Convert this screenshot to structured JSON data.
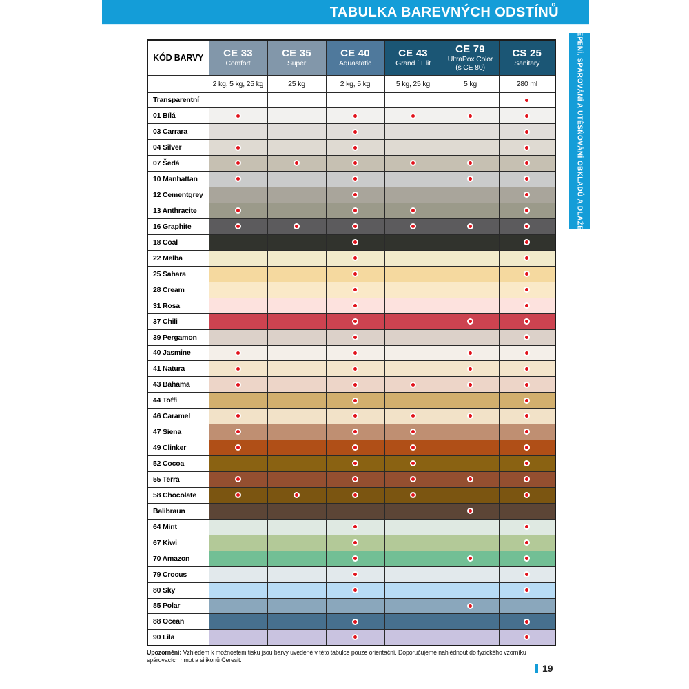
{
  "page": {
    "title": "TABULKA BAREVNÝCH ODSTÍNŮ",
    "side_tab": "LEPENÍ, SPÁROVÁNÍ A UTĚSŇOVÁNÍ OBKLADŮ A DLAŽBY",
    "note_bold": "Upozornění:",
    "note_text": " Vzhledem k možnostem tisku jsou barvy uvedené v této tabulce pouze orientační. Doporučujeme nahlédnout do fyzického vzorníku spárovacích hmot a silikonů Ceresit.",
    "page_number": "19"
  },
  "colors": {
    "accent_cyan": "#149DD8",
    "dot_red": "#E1121B",
    "header_dark_teal": "#1B5675",
    "header_mid_blue": "#4F799C",
    "header_gray_blue": "#8297AA"
  },
  "table": {
    "corner_header": "KÓD BARVY",
    "products": [
      {
        "code": "CE 33",
        "name": "Comfort",
        "sizes": "2 kg, 5 kg, 25 kg",
        "header_bg": "#8297AA"
      },
      {
        "code": "CE 35",
        "name": "Super",
        "sizes": "25 kg",
        "header_bg": "#8297AA"
      },
      {
        "code": "CE 40",
        "name": "Aquastatic",
        "sizes": "2 kg, 5 kg",
        "header_bg": "#4F799C"
      },
      {
        "code": "CE 43",
        "name": "Grand ´ Elit",
        "sizes": "5 kg, 25 kg",
        "header_bg": "#1B5675"
      },
      {
        "code": "CE 79",
        "name": "UltraPox Color",
        "name2": "(s CE 80)",
        "sizes": "5 kg",
        "header_bg": "#1B5675"
      },
      {
        "code": "CS 25",
        "name": "Sanitary",
        "sizes": "280 ml",
        "header_bg": "#1B5675"
      }
    ],
    "rows": [
      {
        "label": "Transparentní",
        "color": "#FFFFFF",
        "dots": [
          0,
          0,
          0,
          0,
          0,
          1
        ]
      },
      {
        "label": "01 Bílá",
        "color": "#F2F1EF",
        "dots": [
          1,
          0,
          1,
          1,
          1,
          1
        ]
      },
      {
        "label": "03 Carrara",
        "color": "#E1DDDA",
        "dots": [
          0,
          0,
          1,
          0,
          0,
          1
        ]
      },
      {
        "label": "04 Silver",
        "color": "#DFDAD2",
        "dots": [
          1,
          0,
          1,
          0,
          0,
          1
        ]
      },
      {
        "label": "07 Šedá",
        "color": "#C6C0B2",
        "dots": [
          1,
          1,
          1,
          1,
          1,
          1
        ]
      },
      {
        "label": "10 Manhattan",
        "color": "#CACBCB",
        "dots": [
          1,
          0,
          1,
          0,
          1,
          1
        ]
      },
      {
        "label": "12 Cementgrey",
        "color": "#A9A59B",
        "dots": [
          0,
          0,
          1,
          0,
          0,
          1
        ]
      },
      {
        "label": "13 Anthracite",
        "color": "#9B9A8A",
        "dots": [
          1,
          0,
          1,
          1,
          0,
          1
        ]
      },
      {
        "label": "16 Graphite",
        "color": "#5C5B5D",
        "dots": [
          1,
          1,
          1,
          1,
          1,
          1
        ]
      },
      {
        "label": "18 Coal",
        "color": "#31332D",
        "dots": [
          0,
          0,
          1,
          0,
          0,
          1
        ]
      },
      {
        "label": "22 Melba",
        "color": "#F1EACB",
        "dots": [
          0,
          0,
          1,
          0,
          0,
          1
        ]
      },
      {
        "label": "25 Sahara",
        "color": "#F5D99F",
        "dots": [
          0,
          0,
          1,
          0,
          0,
          1
        ]
      },
      {
        "label": "28 Cream",
        "color": "#FAE9C8",
        "dots": [
          0,
          0,
          1,
          0,
          0,
          1
        ]
      },
      {
        "label": "31 Rosa",
        "color": "#FDE2DE",
        "dots": [
          0,
          0,
          1,
          0,
          0,
          1
        ]
      },
      {
        "label": "37 Chili",
        "color": "#CC4350",
        "dots": [
          0,
          0,
          1,
          0,
          1,
          1
        ]
      },
      {
        "label": "39 Pergamon",
        "color": "#DCD1C9",
        "dots": [
          0,
          0,
          1,
          0,
          0,
          1
        ]
      },
      {
        "label": "40 Jasmine",
        "color": "#F4EFE9",
        "dots": [
          1,
          0,
          1,
          0,
          1,
          1
        ]
      },
      {
        "label": "41 Natura",
        "color": "#F4E5CB",
        "dots": [
          1,
          0,
          1,
          0,
          1,
          1
        ]
      },
      {
        "label": "43 Bahama",
        "color": "#EDD5C8",
        "dots": [
          1,
          0,
          1,
          1,
          1,
          1
        ]
      },
      {
        "label": "44 Toffi",
        "color": "#D2AF6E",
        "dots": [
          0,
          0,
          1,
          0,
          0,
          1
        ]
      },
      {
        "label": "46 Caramel",
        "color": "#F2E2C8",
        "dots": [
          1,
          0,
          1,
          1,
          1,
          1
        ]
      },
      {
        "label": "47 Siena",
        "color": "#BF8F72",
        "dots": [
          1,
          0,
          1,
          1,
          0,
          1
        ]
      },
      {
        "label": "49 Clinker",
        "color": "#B04F17",
        "dots": [
          1,
          0,
          1,
          1,
          0,
          1
        ]
      },
      {
        "label": "52 Cocoa",
        "color": "#8A6212",
        "dots": [
          0,
          0,
          1,
          1,
          0,
          1
        ]
      },
      {
        "label": "55 Terra",
        "color": "#944F30",
        "dots": [
          1,
          0,
          1,
          1,
          1,
          1
        ]
      },
      {
        "label": "58 Chocolate",
        "color": "#7B5511",
        "dots": [
          1,
          1,
          1,
          1,
          0,
          1
        ]
      },
      {
        "label": "Balibraun",
        "color": "#5C4536",
        "dots": [
          0,
          0,
          0,
          0,
          1,
          0
        ]
      },
      {
        "label": "64 Mint",
        "color": "#DFE9E2",
        "dots": [
          0,
          0,
          1,
          0,
          0,
          1
        ]
      },
      {
        "label": "67 Kiwi",
        "color": "#B3C998",
        "dots": [
          0,
          0,
          1,
          0,
          0,
          1
        ]
      },
      {
        "label": "70 Amazon",
        "color": "#72BF95",
        "dots": [
          0,
          0,
          1,
          0,
          1,
          1
        ]
      },
      {
        "label": "79 Crocus",
        "color": "#E2E9EC",
        "dots": [
          0,
          0,
          1,
          0,
          0,
          1
        ]
      },
      {
        "label": "80 Sky",
        "color": "#B8DCF5",
        "dots": [
          0,
          0,
          1,
          0,
          0,
          1
        ]
      },
      {
        "label": "85 Polar",
        "color": "#8AA7BC",
        "dots": [
          0,
          0,
          0,
          0,
          1,
          0
        ]
      },
      {
        "label": "88 Ocean",
        "color": "#47708E",
        "dots": [
          0,
          0,
          1,
          0,
          0,
          1
        ]
      },
      {
        "label": "90 Lila",
        "color": "#C9C3E0",
        "dots": [
          0,
          0,
          1,
          0,
          0,
          1
        ]
      }
    ]
  }
}
